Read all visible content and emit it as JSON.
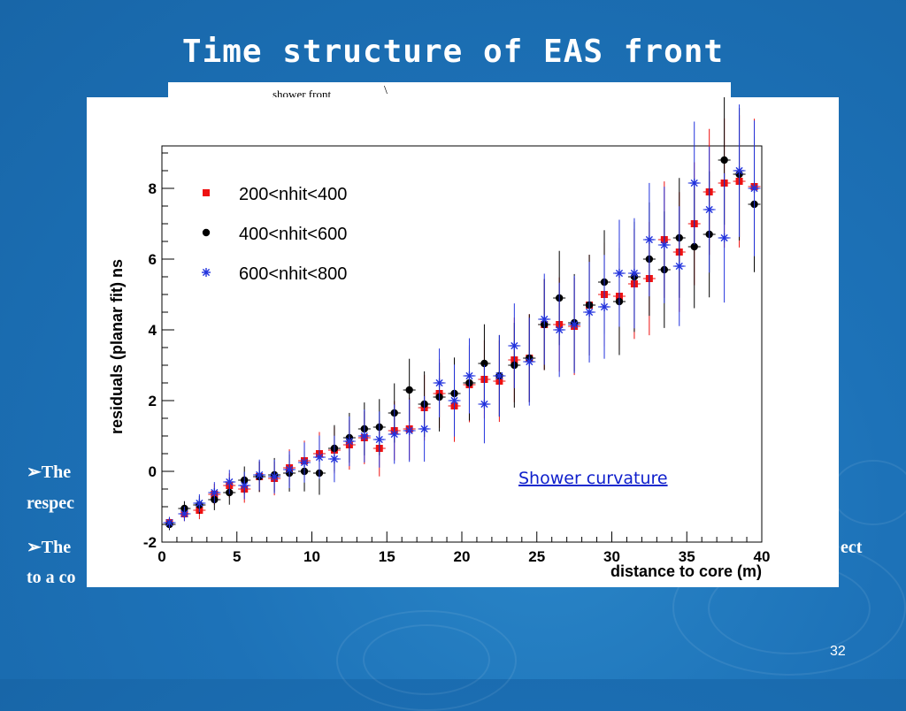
{
  "slide": {
    "title": "Time structure of EAS front",
    "back_panel_text": "shower front",
    "back_panel_mark": "\\",
    "bullet1_line1": "➢The",
    "bullet1_line2": "respec",
    "bullet2_line1": "➢The",
    "bullet2_right": "ect",
    "bullet2_line2": "to a co",
    "page_number": "32"
  },
  "chart_data": {
    "type": "scatter",
    "xlabel": "distance to core (m)",
    "ylabel": "residuals (planar fit) ns",
    "annotation": "Shower curvature",
    "xlim": [
      0,
      40
    ],
    "ylim": [
      -2,
      9.2
    ],
    "xticks": [
      0,
      5,
      10,
      15,
      20,
      25,
      30,
      35,
      40
    ],
    "yticks": [
      -2,
      0,
      2,
      4,
      6,
      8
    ],
    "legend_position": "top-left",
    "series": [
      {
        "name": "200<nhit<400",
        "marker": "square",
        "color": "#ee1111",
        "x": [
          0.5,
          1.5,
          2.5,
          3.5,
          4.5,
          5.5,
          6.5,
          7.5,
          8.5,
          9.5,
          10.5,
          11.5,
          12.5,
          13.5,
          14.5,
          15.5,
          16.5,
          17.5,
          18.5,
          19.5,
          20.5,
          21.5,
          22.5,
          23.5,
          24.5,
          25.5,
          26.5,
          27.5,
          28.5,
          29.5,
          30.5,
          31.5,
          32.5,
          33.5,
          34.5,
          35.5,
          36.5,
          37.5,
          38.5,
          39.5
        ],
        "y": [
          -1.45,
          -1.2,
          -1.1,
          -0.65,
          -0.4,
          -0.5,
          -0.15,
          -0.2,
          0.1,
          0.3,
          0.5,
          0.6,
          0.75,
          0.95,
          0.65,
          1.15,
          1.2,
          1.8,
          2.2,
          1.85,
          2.45,
          2.6,
          2.55,
          3.15,
          3.2,
          4.15,
          4.15,
          4.1,
          4.7,
          5.0,
          4.95,
          5.3,
          5.45,
          6.55,
          6.2,
          7.0,
          7.9,
          8.15,
          8.2,
          8.05
        ]
      },
      {
        "name": "400<nhit<600",
        "marker": "circle",
        "color": "#000000",
        "x": [
          0.5,
          1.5,
          2.5,
          3.5,
          4.5,
          5.5,
          6.5,
          7.5,
          8.5,
          9.5,
          10.5,
          11.5,
          12.5,
          13.5,
          14.5,
          15.5,
          16.5,
          17.5,
          18.5,
          19.5,
          20.5,
          21.5,
          22.5,
          23.5,
          24.5,
          25.5,
          26.5,
          27.5,
          28.5,
          29.5,
          30.5,
          31.5,
          32.5,
          33.5,
          34.5,
          35.5,
          36.5,
          37.5,
          38.5,
          39.5
        ],
        "y": [
          -1.5,
          -1.05,
          -0.95,
          -0.8,
          -0.6,
          -0.25,
          -0.15,
          -0.1,
          -0.05,
          0.0,
          -0.05,
          0.65,
          0.95,
          1.2,
          1.25,
          1.65,
          2.3,
          1.9,
          2.1,
          2.2,
          2.5,
          3.05,
          2.7,
          3.0,
          3.2,
          4.15,
          4.9,
          4.2,
          4.7,
          5.35,
          4.8,
          5.5,
          6.0,
          5.7,
          6.6,
          6.35,
          6.7,
          8.8,
          8.4,
          7.55
        ]
      },
      {
        "name": "600<nhit<800",
        "marker": "star",
        "color": "#2233dd",
        "x": [
          0.5,
          1.5,
          2.5,
          3.5,
          4.5,
          5.5,
          6.5,
          7.5,
          8.5,
          9.5,
          10.5,
          11.5,
          12.5,
          13.5,
          14.5,
          15.5,
          16.5,
          17.5,
          18.5,
          19.5,
          20.5,
          21.5,
          22.5,
          23.5,
          24.5,
          25.5,
          26.5,
          27.5,
          28.5,
          29.5,
          30.5,
          31.5,
          32.5,
          33.5,
          34.5,
          35.5,
          36.5,
          37.5,
          38.5,
          39.5
        ],
        "y": [
          -1.45,
          -1.2,
          -0.9,
          -0.6,
          -0.3,
          -0.4,
          -0.1,
          -0.15,
          0.05,
          0.25,
          0.4,
          0.35,
          0.85,
          1.0,
          0.9,
          1.05,
          1.15,
          1.2,
          2.5,
          2.0,
          2.7,
          1.9,
          2.7,
          3.55,
          3.1,
          4.3,
          4.0,
          4.15,
          4.5,
          4.65,
          5.6,
          5.6,
          6.55,
          6.4,
          5.8,
          8.15,
          7.4,
          6.6,
          8.5,
          8.0
        ]
      }
    ]
  }
}
